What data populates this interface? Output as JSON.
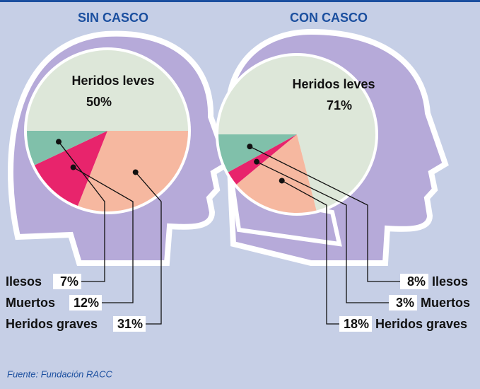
{
  "chart_data": [
    {
      "type": "pie",
      "title": "SIN CASCO",
      "categories": [
        "Heridos leves",
        "Heridos graves",
        "Muertos",
        "Ilesos"
      ],
      "values": [
        50,
        31,
        12,
        7
      ],
      "value_labels": [
        "50%",
        "31%",
        "12%",
        "7%"
      ],
      "colors": [
        "#dde7d9",
        "#f6b8a0",
        "#e8246c",
        "#80c0aa"
      ]
    },
    {
      "type": "pie",
      "title": "CON CASCO",
      "categories": [
        "Heridos leves",
        "Heridos graves",
        "Muertos",
        "Ilesos"
      ],
      "values": [
        71,
        18,
        3,
        8
      ],
      "value_labels": [
        "71%",
        "18%",
        "3%",
        "8%"
      ],
      "colors": [
        "#dde7d9",
        "#f6b8a0",
        "#e8246c",
        "#80c0aa"
      ]
    }
  ],
  "source": "Fuente: Fundación RACC"
}
